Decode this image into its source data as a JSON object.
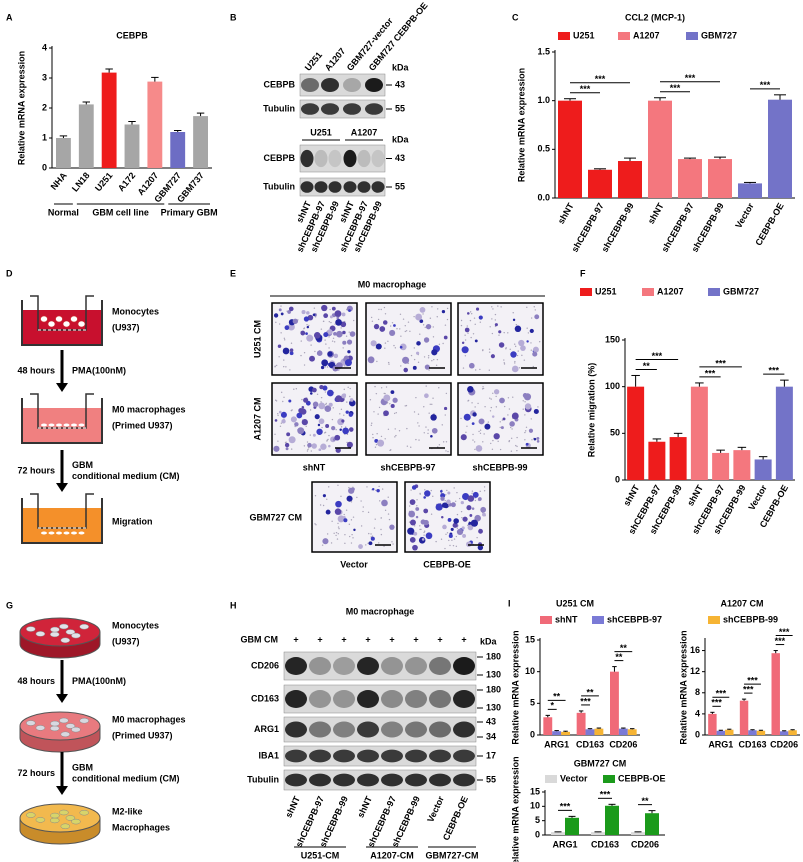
{
  "panel_letters": [
    "A",
    "B",
    "C",
    "D",
    "E",
    "F",
    "G",
    "H",
    "I"
  ],
  "chart_data": [
    {
      "type": "bar",
      "title": "CEBPB",
      "y_label": "Relative mRNA expression",
      "categories": [
        "NHA",
        "LN18",
        "U251",
        "A172",
        "A1207",
        "GBM727",
        "GBM737"
      ],
      "values": [
        1.0,
        2.12,
        3.18,
        1.45,
        2.88,
        1.2,
        1.73
      ],
      "errors": [
        0.07,
        0.08,
        0.12,
        0.1,
        0.14,
        0.05,
        0.1
      ],
      "colors": [
        "#a6a6a6",
        "#a6a6a6",
        "#ee1c1c",
        "#a6a6a6",
        "#f68a8a",
        "#6d6dc4",
        "#a6a6a6"
      ],
      "ylim": [
        0,
        4
      ],
      "yticks": [
        0,
        1,
        2,
        3,
        4
      ],
      "groups": [
        {
          "label": "Normal",
          "from": 0,
          "to": 0
        },
        {
          "label": "GBM cell line",
          "from": 1,
          "to": 4
        },
        {
          "label": "Primary GBM",
          "from": 5,
          "to": 6
        }
      ]
    },
    {
      "type": "bar",
      "title": "CCL2 (MCP-1)",
      "y_label": "Relative mRNA expression",
      "categories": [
        "shNT",
        "shCEBPB-97",
        "shCEBPB-99",
        "shNT",
        "shCEBPB-97",
        "shCEBPB-99",
        "Vector",
        "CEBPB-OE"
      ],
      "series": [
        {
          "name": "U251",
          "color": "#ee1c1c",
          "values": [
            1.0,
            0.29,
            0.38,
            null,
            null,
            null,
            null,
            null
          ],
          "errors": [
            0.02,
            0.01,
            0.03,
            null,
            null,
            null,
            null,
            null
          ]
        },
        {
          "name": "A1207",
          "color": "#f4777e",
          "values": [
            null,
            null,
            null,
            1.0,
            0.4,
            0.4,
            null,
            null
          ],
          "errors": [
            null,
            null,
            null,
            0.03,
            0.01,
            0.02,
            null,
            null
          ]
        },
        {
          "name": "GBM727",
          "color": "#7373c8",
          "values": [
            null,
            null,
            null,
            null,
            null,
            null,
            0.15,
            1.01
          ],
          "errors": [
            null,
            null,
            null,
            null,
            null,
            null,
            0.01,
            0.05
          ]
        }
      ],
      "ylim": [
        0,
        1.5
      ],
      "yticks": [
        {
          "value": 0,
          "label": "0.0"
        },
        {
          "value": 0.5,
          "label": "0.5"
        },
        {
          "value": 1,
          "label": "1.0"
        },
        {
          "value": 1.5,
          "label": "1.5"
        }
      ],
      "significance": [
        {
          "label": "***",
          "between": [
            0,
            1
          ]
        },
        {
          "label": "***",
          "between": [
            0,
            2
          ]
        },
        {
          "label": "***",
          "between": [
            3,
            4
          ]
        },
        {
          "label": "***",
          "between": [
            3,
            5
          ]
        },
        {
          "label": "***",
          "between": [
            6,
            7
          ]
        }
      ]
    },
    {
      "type": "bar",
      "y_label": "Relative migration (%)",
      "categories": [
        "shNT",
        "shCEBPB-97",
        "shCEBPB-99",
        "shNT",
        "shCEBPB-97",
        "shCEBPB-99",
        "Vector",
        "CEBPB-OE"
      ],
      "series": [
        {
          "name": "U251",
          "color": "#ee1c1c",
          "values": [
            100,
            41,
            46,
            null,
            null,
            null,
            null,
            null
          ],
          "errors": [
            12,
            3,
            4,
            null,
            null,
            null,
            null,
            null
          ]
        },
        {
          "name": "A1207",
          "color": "#f4777e",
          "values": [
            null,
            null,
            null,
            100,
            29,
            32,
            null,
            null
          ],
          "errors": [
            null,
            null,
            null,
            4,
            3,
            3,
            null,
            null
          ]
        },
        {
          "name": "GBM727",
          "color": "#7373c8",
          "values": [
            null,
            null,
            null,
            null,
            null,
            null,
            22,
            100
          ],
          "errors": [
            null,
            null,
            null,
            null,
            null,
            null,
            3,
            7
          ]
        }
      ],
      "ylim": [
        0,
        150
      ],
      "yticks": [
        0,
        50,
        100,
        150
      ],
      "significance": [
        {
          "label": "**",
          "between": [
            0,
            1
          ]
        },
        {
          "label": "***",
          "between": [
            0,
            2
          ]
        },
        {
          "label": "***",
          "between": [
            3,
            4
          ]
        },
        {
          "label": "***",
          "between": [
            3,
            5
          ]
        },
        {
          "label": "***",
          "between": [
            6,
            7
          ]
        }
      ]
    },
    {
      "type": "bar",
      "title": "U251 CM",
      "y_label": "Relative mRNA expression",
      "categories": [
        "ARG1",
        "CD163",
        "CD206"
      ],
      "series": [
        {
          "name": "shNT",
          "color": "#f06a78",
          "values": [
            2.8,
            3.5,
            10.0
          ],
          "errors": [
            0.3,
            0.3,
            0.8
          ]
        },
        {
          "name": "shCEBPB-97",
          "color": "#7a7ad6",
          "values": [
            0.6,
            0.9,
            1.0
          ],
          "errors": [
            0.1,
            0.1,
            0.1
          ]
        },
        {
          "name": "shCEBPB-99",
          "color": "#f6b434",
          "values": [
            0.5,
            1.0,
            0.9
          ],
          "errors": [
            0.1,
            0.1,
            0.1
          ]
        }
      ],
      "ylim": [
        0,
        15
      ],
      "yticks": [
        0,
        5,
        10,
        15
      ],
      "significance": [
        {
          "label": "*",
          "category": 0,
          "between": [
            0,
            1
          ]
        },
        {
          "label": "**",
          "category": 0,
          "between": [
            0,
            2
          ]
        },
        {
          "label": "***",
          "category": 1,
          "between": [
            0,
            1
          ]
        },
        {
          "label": "**",
          "category": 1,
          "between": [
            0,
            2
          ]
        },
        {
          "label": "**",
          "category": 2,
          "between": [
            0,
            1
          ]
        },
        {
          "label": "**",
          "category": 2,
          "between": [
            0,
            2
          ]
        }
      ]
    },
    {
      "type": "bar",
      "title": "A1207 CM",
      "y_label": "Relative mRNA expression",
      "categories": [
        "ARG1",
        "CD163",
        "CD206"
      ],
      "series": [
        {
          "color": "#f06a78",
          "values": [
            4.0,
            6.5,
            15.5
          ],
          "errors": [
            0.3,
            0.3,
            0.5
          ]
        },
        {
          "color": "#7a7ad6",
          "values": [
            0.8,
            0.9,
            0.7
          ],
          "errors": [
            0.1,
            0.1,
            0.1
          ]
        },
        {
          "color": "#f6b434",
          "values": [
            1.0,
            0.8,
            0.9
          ],
          "errors": [
            0.1,
            0.1,
            0.1
          ]
        }
      ],
      "ylim": [
        0,
        18
      ],
      "yticks": [
        0,
        4,
        8,
        12,
        16
      ],
      "significance": [
        {
          "label": "***",
          "category": 0,
          "between": [
            0,
            1
          ]
        },
        {
          "label": "***",
          "category": 0,
          "between": [
            0,
            2
          ]
        },
        {
          "label": "***",
          "category": 1,
          "between": [
            0,
            1
          ]
        },
        {
          "label": "***",
          "category": 1,
          "between": [
            0,
            2
          ]
        },
        {
          "label": "***",
          "category": 2,
          "between": [
            0,
            1
          ]
        },
        {
          "label": "***",
          "category": 2,
          "between": [
            0,
            2
          ]
        }
      ]
    },
    {
      "type": "bar",
      "title": "GBM727 CM",
      "y_label": "Relative mRNA expression",
      "categories": [
        "ARG1",
        "CD163",
        "CD206"
      ],
      "series": [
        {
          "name": "Vector",
          "color": "#d9d9d9",
          "values": [
            1.0,
            1.0,
            1.0
          ],
          "errors": [
            0.1,
            0.1,
            0.1
          ]
        },
        {
          "name": "CEBPB-OE",
          "color": "#1b9a1b",
          "values": [
            6.0,
            10.2,
            7.6
          ],
          "errors": [
            0.5,
            0.5,
            0.9
          ]
        }
      ],
      "ylim": [
        0,
        15
      ],
      "yticks": [
        0,
        5,
        10,
        15
      ],
      "significance": [
        {
          "label": "***",
          "category": 0,
          "between": [
            0,
            1
          ]
        },
        {
          "label": "***",
          "category": 1,
          "between": [
            0,
            1
          ]
        },
        {
          "label": "**",
          "category": 2,
          "between": [
            0,
            1
          ]
        }
      ]
    }
  ],
  "blot_B": {
    "top_lanes": [
      "U251",
      "A1207",
      "GBM727-vector",
      "GBM727 CEBPB-OE"
    ],
    "top_kda_header": "kDa",
    "top_rows": [
      {
        "label": "CEBPB",
        "kda": "43"
      },
      {
        "label": "Tubulin",
        "kda": "55"
      }
    ],
    "bottom_groups": [
      "U251",
      "A1207"
    ],
    "bottom_kda_header": "kDa",
    "bottom_rows": [
      {
        "label": "CEBPB",
        "kda": "43"
      },
      {
        "label": "Tubulin",
        "kda": "55"
      }
    ],
    "bottom_lanes": [
      "shNT",
      "shCEBPB-97",
      "shCEBPB-99",
      "shNT",
      "shCEBPB-97",
      "shCEBPB-99"
    ]
  },
  "micrographs_E": {
    "title": "M0 macrophage",
    "rows": [
      "U251 CM",
      "A1207 CM",
      "GBM727 CM"
    ],
    "columns": [
      "shNT",
      "shCEBPB-97",
      "shCEBPB-99"
    ],
    "oe_columns": [
      "Vector",
      "CEBPB-OE"
    ]
  },
  "diagram_D": {
    "steps": [
      [
        "Monocytes",
        "(U937)"
      ],
      [
        "M0 macrophages",
        "(Primed U937)"
      ],
      [
        "Migration"
      ]
    ],
    "transitions": [
      {
        "time": "48 hours",
        "treatment": [
          "PMA(100nM)"
        ]
      },
      {
        "time": "72 hours",
        "treatment": [
          "GBM",
          "conditional medium (CM)"
        ]
      }
    ]
  },
  "diagram_G": {
    "steps": [
      [
        "Monocytes",
        "(U937)"
      ],
      [
        "M0 macrophages",
        "(Primed U937)"
      ],
      [
        "M2-like",
        "Macrophages"
      ]
    ],
    "transitions": [
      {
        "time": "48 hours",
        "treatment": [
          "PMA(100nM)"
        ]
      },
      {
        "time": "72 hours",
        "treatment": [
          "GBM",
          "conditional medium (CM)"
        ]
      }
    ]
  },
  "blot_H": {
    "title": "M0 macrophage",
    "condition": "GBM CM",
    "lane_marks": [
      "+",
      "+",
      "+",
      "+",
      "+",
      "+",
      "+",
      "+"
    ],
    "kda_header": "kDa",
    "rows": [
      {
        "label": "CD206",
        "kda": [
          "180",
          "130"
        ]
      },
      {
        "label": "CD163",
        "kda": [
          "180",
          "130"
        ]
      },
      {
        "label": "ARG1",
        "kda": [
          "43",
          "34"
        ]
      },
      {
        "label": "IBA1",
        "kda": [
          "17"
        ]
      },
      {
        "label": "Tubulin",
        "kda": [
          "55"
        ]
      }
    ],
    "lanes": [
      "shNT",
      "shCEBPB-97",
      "shCEBPB-99",
      "shNT",
      "shCEBPB-97",
      "shCEBPB-99",
      "Vector",
      "CEBPB-OE"
    ],
    "groups": [
      "U251-CM",
      "A1207-CM",
      "GBM727-CM"
    ]
  }
}
